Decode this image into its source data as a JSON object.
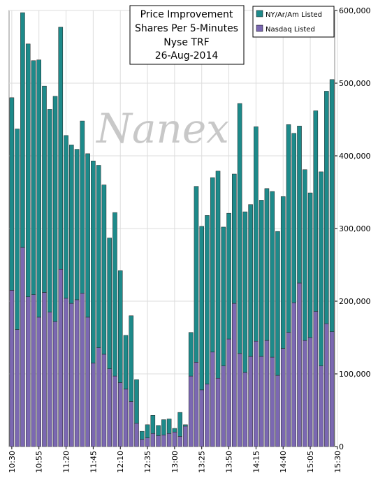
{
  "chart_data": {
    "type": "bar",
    "stacked": true,
    "title_lines": [
      "Price Improvement",
      "Shares Per 5-Minutes",
      "Nyse TRF",
      "26-Aug-2014"
    ],
    "watermark": "Nanex",
    "x_tick_labels": [
      "10:30",
      "10:55",
      "11:20",
      "11:45",
      "12:10",
      "12:35",
      "13:00",
      "13:25",
      "13:50",
      "14:15",
      "14:40",
      "15:05",
      "15:30"
    ],
    "y_tick_labels": [
      "0",
      "100,000",
      "200,000",
      "300,000",
      "400,000",
      "500,000",
      "600,000"
    ],
    "ylim": [
      0,
      600000
    ],
    "grid": true,
    "legend_position": "top-right",
    "series": [
      {
        "name": "Nasdaq Listed",
        "color": "#7b68b2",
        "values": [
          215000,
          161000,
          274000,
          206000,
          209000,
          178000,
          212000,
          185000,
          172000,
          244000,
          204000,
          197000,
          202000,
          211000,
          178000,
          115000,
          136000,
          127000,
          107000,
          97000,
          88000,
          79000,
          62000,
          32000,
          10000,
          12000,
          18000,
          15000,
          16000,
          18000,
          20000,
          14000,
          28000,
          97000,
          116000,
          78000,
          86000,
          130000,
          94000,
          111000,
          148000,
          197000,
          128000,
          102000,
          124000,
          145000,
          124000,
          146000,
          123000,
          98000,
          135000,
          157000,
          198000,
          225000,
          146000,
          150000,
          186000,
          111000,
          169000,
          158000
        ]
      },
      {
        "name": "NY/Ar/Am Listed",
        "color": "#1d8a8a",
        "values": [
          265000,
          276000,
          323000,
          348000,
          322000,
          354000,
          284000,
          279000,
          310000,
          333000,
          224000,
          218000,
          207000,
          237000,
          225000,
          278000,
          251000,
          233000,
          180000,
          225000,
          154000,
          74000,
          118000,
          60000,
          11000,
          18000,
          25000,
          14000,
          21000,
          20000,
          5000,
          33000,
          2000,
          60000,
          242000,
          225000,
          232000,
          240000,
          285000,
          191000,
          173000,
          178000,
          344000,
          221000,
          209000,
          295000,
          215000,
          209000,
          228000,
          198000,
          209000,
          286000,
          233000,
          216000,
          235000,
          199000,
          276000,
          267000,
          320000,
          347000
        ]
      }
    ]
  }
}
